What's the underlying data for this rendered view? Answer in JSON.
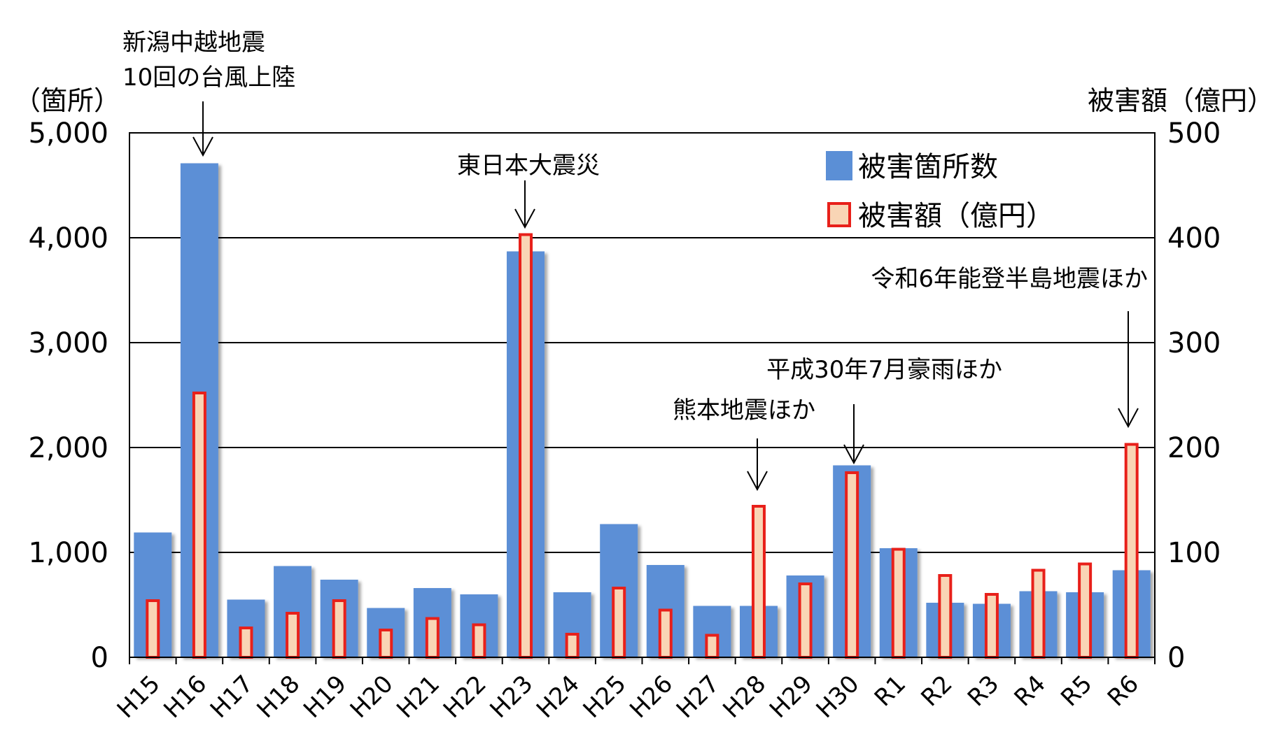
{
  "chart_data": {
    "type": "bar",
    "categories": [
      "H15",
      "H16",
      "H17",
      "H18",
      "H19",
      "H20",
      "H21",
      "H22",
      "H23",
      "H24",
      "H25",
      "H26",
      "H27",
      "H28",
      "H29",
      "H30",
      "R1",
      "R2",
      "R3",
      "R4",
      "R5",
      "R6"
    ],
    "series": [
      {
        "name": "被害箇所数",
        "axis": "left",
        "color": "#5B8FD6",
        "values": [
          1190,
          4710,
          550,
          870,
          740,
          470,
          660,
          600,
          3870,
          620,
          1270,
          880,
          490,
          490,
          780,
          1830,
          1040,
          520,
          510,
          630,
          620,
          830
        ]
      },
      {
        "name": "被害額（億円）",
        "axis": "right",
        "color": "#F9D5B5",
        "edge_color": "#E8201A",
        "values": [
          54,
          252,
          28,
          42,
          54,
          26,
          37,
          31,
          403,
          22,
          66,
          45,
          21,
          144,
          70,
          176,
          103,
          78,
          60,
          83,
          89,
          203
        ]
      }
    ],
    "left_axis": {
      "unit": "（箇所）",
      "ylim": [
        0,
        5000
      ],
      "ticks": [
        0,
        1000,
        2000,
        3000,
        4000,
        5000
      ],
      "tick_labels": [
        "0",
        "1,000",
        "2,000",
        "3,000",
        "4,000",
        "5,000"
      ]
    },
    "right_axis": {
      "unit": "被害額（億円）",
      "ylim": [
        0,
        500
      ],
      "ticks": [
        0,
        100,
        200,
        300,
        400,
        500
      ],
      "tick_labels": [
        "0",
        "100",
        "200",
        "300",
        "400",
        "500"
      ]
    },
    "grid": true,
    "legend_position": "top-right",
    "annotations": [
      {
        "category": "H16",
        "lines": [
          "新潟中越地震",
          "10回の台風上陸"
        ]
      },
      {
        "category": "H23",
        "lines": [
          "東日本大震災"
        ]
      },
      {
        "category": "H28",
        "lines": [
          "熊本地震ほか"
        ]
      },
      {
        "category": "H30",
        "lines": [
          "平成30年7月豪雨ほか"
        ]
      },
      {
        "category": "R6",
        "lines": [
          "令和6年能登半島地震ほか"
        ]
      }
    ]
  }
}
